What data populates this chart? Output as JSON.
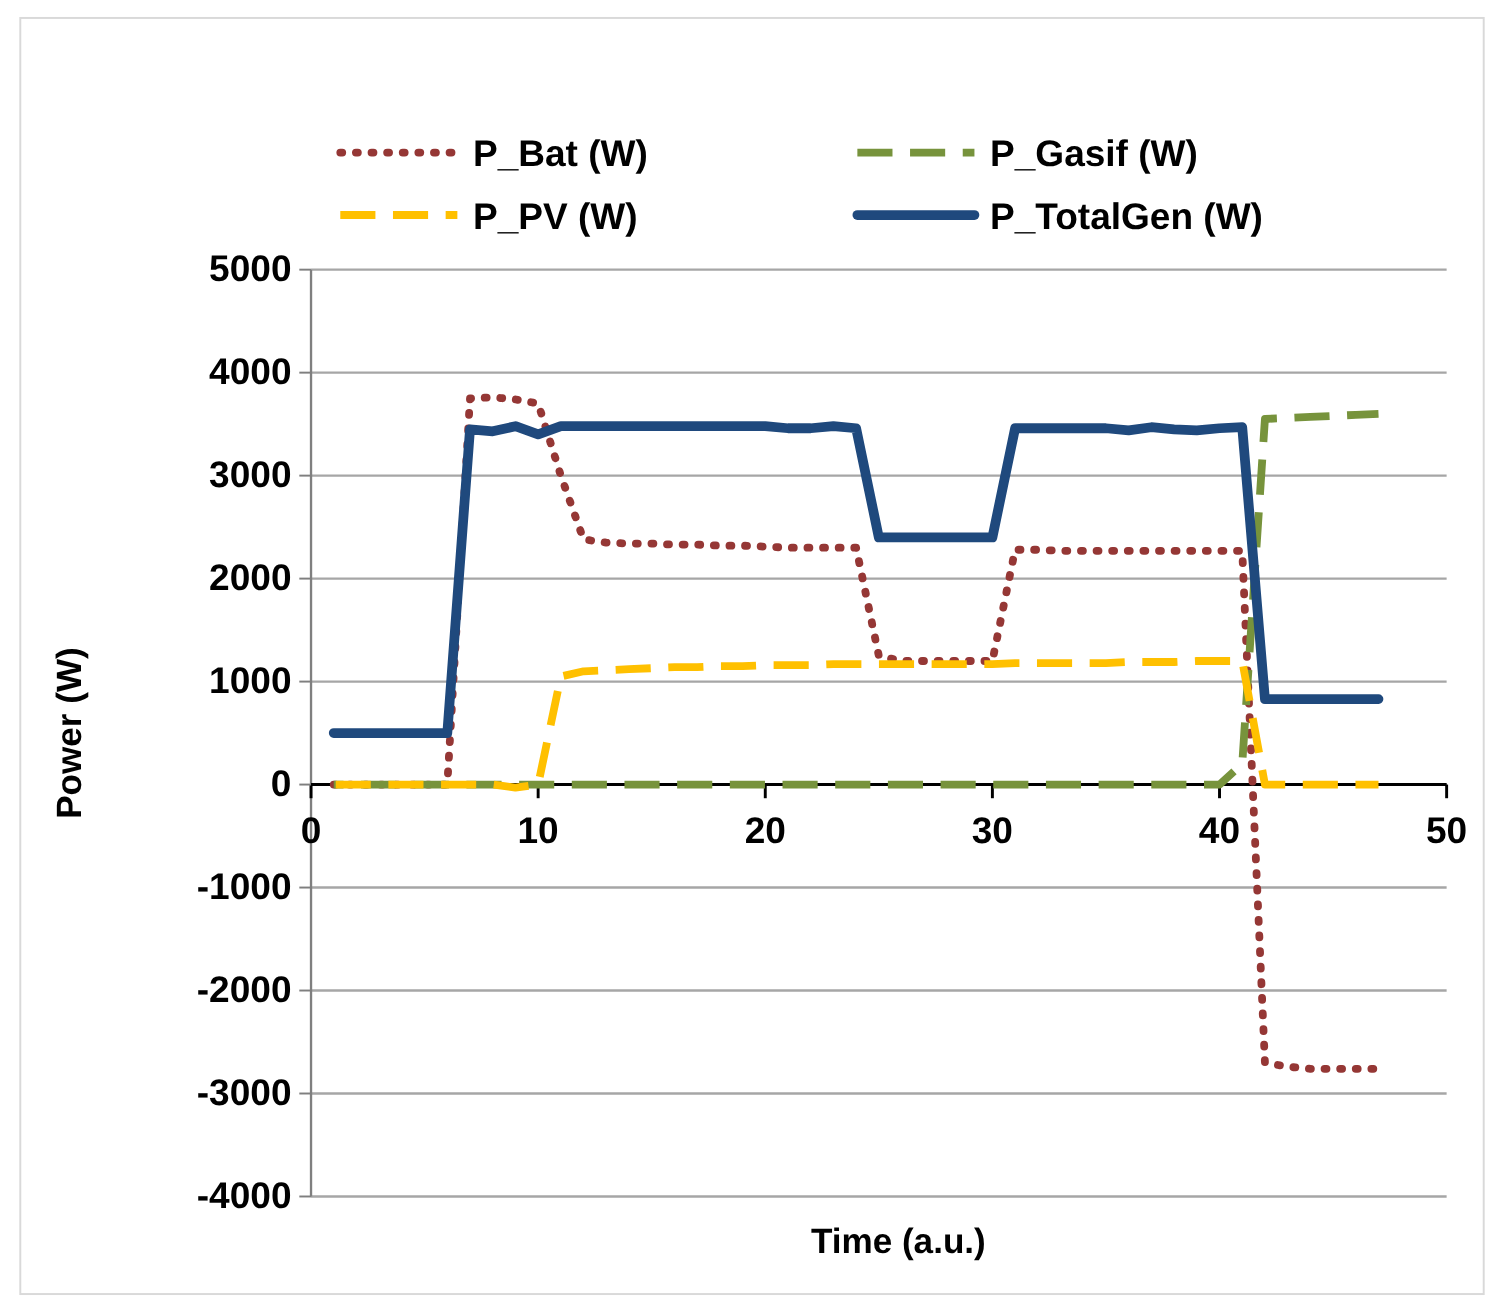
{
  "chart_data": {
    "type": "line",
    "xlabel": "Time (a.u.)",
    "ylabel": "Power (W)",
    "x": [
      1,
      2,
      3,
      4,
      5,
      6,
      7,
      8,
      9,
      10,
      11,
      12,
      13,
      14,
      15,
      16,
      17,
      18,
      19,
      20,
      21,
      22,
      23,
      24,
      25,
      26,
      27,
      28,
      29,
      30,
      31,
      32,
      33,
      34,
      35,
      36,
      37,
      38,
      39,
      40,
      41,
      42,
      43,
      44,
      45,
      46,
      47
    ],
    "xlim": [
      0,
      50
    ],
    "xticks": [
      0,
      10,
      20,
      30,
      40,
      50
    ],
    "ylim": [
      -4000,
      5000
    ],
    "yticks": [
      -4000,
      -3000,
      -2000,
      -1000,
      0,
      1000,
      2000,
      3000,
      4000,
      5000
    ],
    "grid": "y",
    "legend": "top",
    "series": [
      {
        "name": "P_Bat (W)",
        "color": "#953735",
        "line_style": "dotted",
        "values": [
          0,
          0,
          0,
          0,
          0,
          0,
          3750,
          3760,
          3740,
          3700,
          3000,
          2380,
          2350,
          2340,
          2340,
          2330,
          2330,
          2320,
          2320,
          2310,
          2300,
          2300,
          2300,
          2300,
          1250,
          1200,
          1200,
          1200,
          1200,
          1200,
          2280,
          2280,
          2270,
          2270,
          2270,
          2270,
          2270,
          2270,
          2270,
          2270,
          2270,
          -2700,
          -2740,
          -2760,
          -2760,
          -2760,
          -2760
        ]
      },
      {
        "name": "P_Gasif (W)",
        "color": "#77933c",
        "line_style": "dashed",
        "values": [
          0,
          0,
          0,
          0,
          0,
          0,
          0,
          0,
          0,
          0,
          0,
          0,
          0,
          0,
          0,
          0,
          0,
          0,
          0,
          0,
          0,
          0,
          0,
          0,
          0,
          0,
          0,
          0,
          0,
          0,
          0,
          0,
          0,
          0,
          0,
          0,
          0,
          0,
          0,
          0,
          200,
          3550,
          3560,
          3570,
          3580,
          3590,
          3600
        ]
      },
      {
        "name": "P_PV (W)",
        "color": "#ffc000",
        "line_style": "dashed",
        "values": [
          0,
          0,
          0,
          0,
          0,
          0,
          0,
          0,
          -30,
          0,
          1050,
          1100,
          1110,
          1120,
          1130,
          1140,
          1140,
          1150,
          1150,
          1160,
          1160,
          1160,
          1170,
          1170,
          1170,
          1170,
          1170,
          1170,
          1170,
          1170,
          1180,
          1180,
          1180,
          1180,
          1180,
          1190,
          1190,
          1190,
          1200,
          1200,
          1200,
          0,
          0,
          0,
          0,
          0,
          0
        ]
      },
      {
        "name": "P_TotalGen (W)",
        "color": "#1f497d",
        "line_style": "solid",
        "values": [
          500,
          500,
          500,
          500,
          500,
          500,
          3450,
          3430,
          3480,
          3400,
          3480,
          3480,
          3480,
          3480,
          3480,
          3480,
          3480,
          3480,
          3480,
          3480,
          3460,
          3460,
          3480,
          3460,
          2400,
          2400,
          2400,
          2400,
          2400,
          2400,
          3460,
          3460,
          3460,
          3460,
          3460,
          3440,
          3470,
          3450,
          3440,
          3460,
          3470,
          830,
          830,
          830,
          830,
          830,
          830
        ]
      }
    ]
  }
}
